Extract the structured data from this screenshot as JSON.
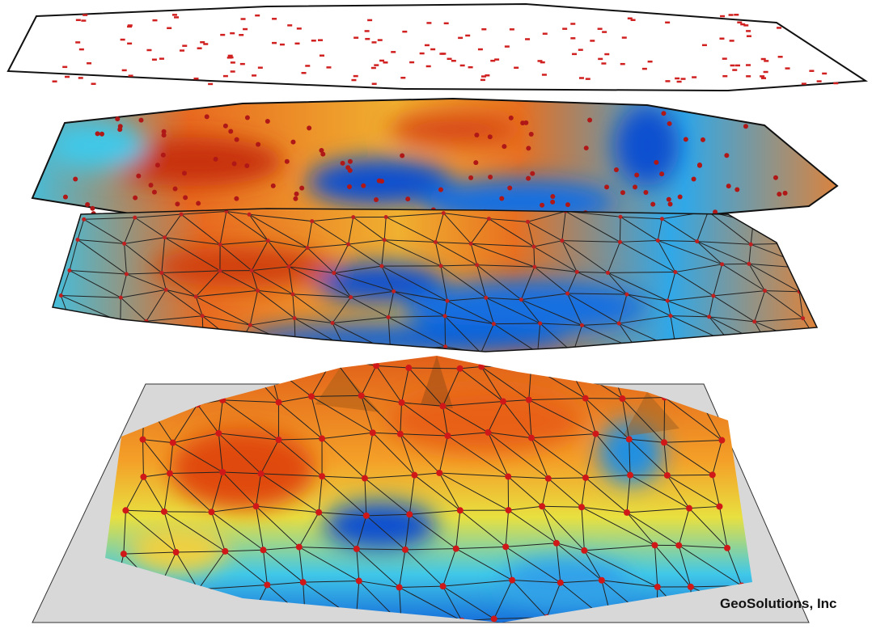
{
  "watermark": "GeoSolutions, Inc"
}
